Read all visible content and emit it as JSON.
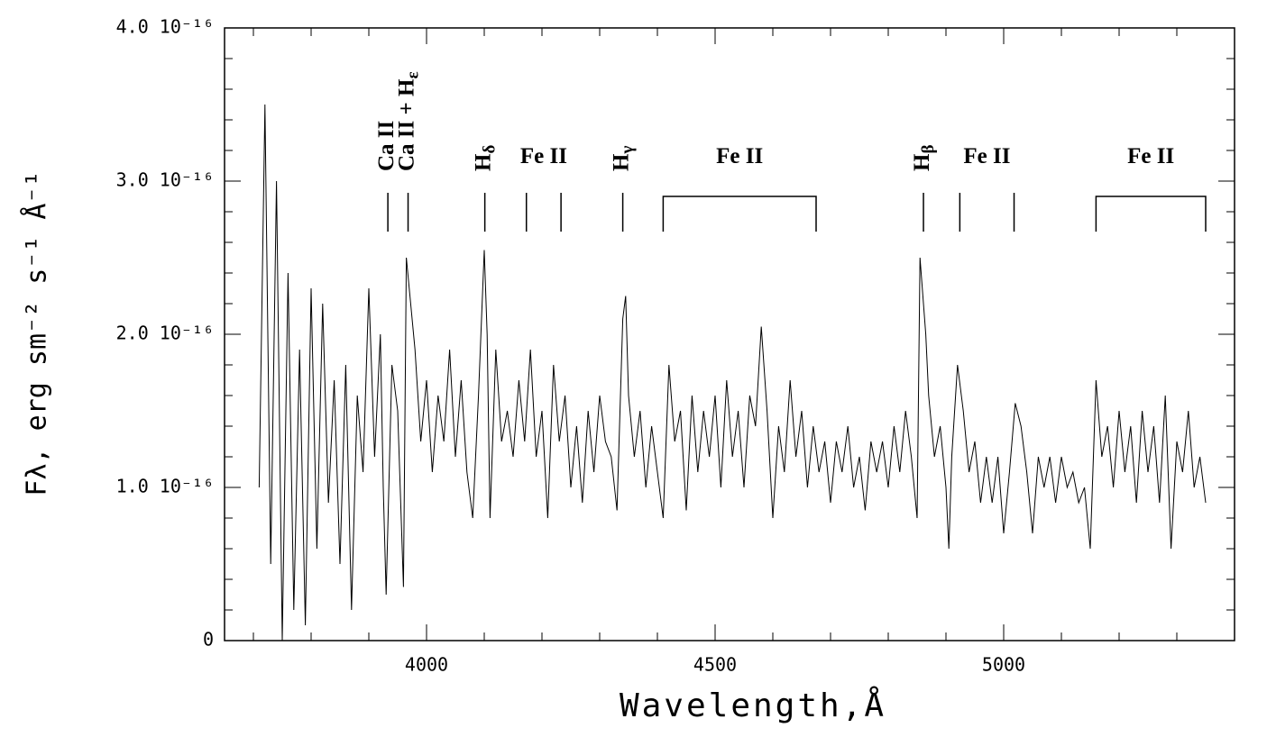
{
  "chart_data": {
    "type": "line",
    "xlabel": "Wavelength,Å",
    "ylabel": "Fλ, erg sm⁻² s⁻¹ Å⁻¹",
    "xlim": [
      3650,
      5400
    ],
    "xticks": [
      4000,
      4500,
      5000
    ],
    "xticks_minor": [
      3700,
      3800,
      3900,
      4100,
      4200,
      4300,
      4400,
      4600,
      4700,
      4800,
      4900,
      5100,
      5200,
      5300
    ],
    "ylim": [
      0,
      4e-16
    ],
    "yticks": [
      0,
      {
        "value": 1e-16,
        "label": "1.0 10⁻¹⁶"
      },
      {
        "value": 2e-16,
        "label": "2.0 10⁻¹⁶"
      },
      {
        "value": 3e-16,
        "label": "3.0 10⁻¹⁶"
      },
      {
        "value": 4e-16,
        "label": "4.0 10⁻¹⁶"
      }
    ],
    "yticks_minor": [
      2e-17,
      4e-17,
      6e-17,
      8e-17,
      1.2e-16,
      1.4e-16,
      1.6e-16,
      1.8e-16,
      2.2e-16,
      2.4e-16,
      2.6e-16,
      2.8e-16,
      3.2e-16,
      3.4e-16,
      3.6e-16,
      3.8e-16
    ],
    "color": "#000000",
    "x": [
      3710,
      3720,
      3730,
      3740,
      3750,
      3760,
      3770,
      3780,
      3790,
      3800,
      3810,
      3820,
      3830,
      3840,
      3850,
      3860,
      3870,
      3880,
      3890,
      3900,
      3910,
      3920,
      3925,
      3930,
      3940,
      3950,
      3960,
      3965,
      3970,
      3980,
      3990,
      4000,
      4010,
      4020,
      4030,
      4040,
      4050,
      4060,
      4070,
      4080,
      4090,
      4100,
      4105,
      4110,
      4120,
      4130,
      4140,
      4150,
      4160,
      4170,
      4180,
      4190,
      4200,
      4210,
      4220,
      4230,
      4240,
      4250,
      4260,
      4270,
      4280,
      4290,
      4300,
      4310,
      4320,
      4330,
      4340,
      4345,
      4350,
      4360,
      4370,
      4380,
      4390,
      4400,
      4410,
      4420,
      4430,
      4440,
      4450,
      4460,
      4470,
      4480,
      4490,
      4500,
      4510,
      4520,
      4530,
      4540,
      4550,
      4560,
      4570,
      4580,
      4590,
      4600,
      4610,
      4620,
      4630,
      4640,
      4650,
      4660,
      4670,
      4680,
      4690,
      4700,
      4710,
      4720,
      4730,
      4740,
      4750,
      4760,
      4770,
      4780,
      4790,
      4800,
      4810,
      4820,
      4830,
      4840,
      4850,
      4855,
      4865,
      4870,
      4880,
      4890,
      4900,
      4905,
      4910,
      4920,
      4930,
      4940,
      4950,
      4960,
      4970,
      4980,
      4990,
      5000,
      5010,
      5020,
      5030,
      5040,
      5050,
      5060,
      5070,
      5080,
      5090,
      5100,
      5110,
      5120,
      5130,
      5140,
      5150,
      5160,
      5170,
      5180,
      5190,
      5200,
      5210,
      5220,
      5230,
      5240,
      5250,
      5260,
      5270,
      5280,
      5290,
      5300,
      5310,
      5320,
      5330,
      5340,
      5350
    ],
    "values": [
      1e-16,
      3.5e-16,
      5e-17,
      3e-16,
      0,
      2.4e-16,
      2e-17,
      1.9e-16,
      1e-17,
      2.3e-16,
      6e-17,
      2.2e-16,
      9e-17,
      1.7e-16,
      5e-17,
      1.8e-16,
      2e-17,
      1.6e-16,
      1.1e-16,
      2.3e-16,
      1.2e-16,
      2e-16,
      1e-16,
      3e-17,
      1.8e-16,
      1.5e-16,
      3.5e-17,
      2.5e-16,
      2.3e-16,
      1.9e-16,
      1.3e-16,
      1.7e-16,
      1.1e-16,
      1.6e-16,
      1.3e-16,
      1.9e-16,
      1.2e-16,
      1.7e-16,
      1.1e-16,
      8e-17,
      1.6e-16,
      2.55e-16,
      2e-16,
      8e-17,
      1.9e-16,
      1.3e-16,
      1.5e-16,
      1.2e-16,
      1.7e-16,
      1.3e-16,
      1.9e-16,
      1.2e-16,
      1.5e-16,
      8e-17,
      1.8e-16,
      1.3e-16,
      1.6e-16,
      1e-16,
      1.4e-16,
      9e-17,
      1.5e-16,
      1.1e-16,
      1.6e-16,
      1.3e-16,
      1.2e-16,
      8.5e-17,
      2.1e-16,
      2.25e-16,
      1.6e-16,
      1.2e-16,
      1.5e-16,
      1e-16,
      1.4e-16,
      1.1e-16,
      8e-17,
      1.8e-16,
      1.3e-16,
      1.5e-16,
      8.5e-17,
      1.6e-16,
      1.1e-16,
      1.5e-16,
      1.2e-16,
      1.6e-16,
      1e-16,
      1.7e-16,
      1.2e-16,
      1.5e-16,
      1e-16,
      1.6e-16,
      1.4e-16,
      2.05e-16,
      1.5e-16,
      8e-17,
      1.4e-16,
      1.1e-16,
      1.7e-16,
      1.2e-16,
      1.5e-16,
      1e-16,
      1.4e-16,
      1.1e-16,
      1.3e-16,
      9e-17,
      1.3e-16,
      1.1e-16,
      1.4e-16,
      1e-16,
      1.2e-16,
      8.5e-17,
      1.3e-16,
      1.1e-16,
      1.3e-16,
      1e-16,
      1.4e-16,
      1.1e-16,
      1.5e-16,
      1.2e-16,
      8e-17,
      2.5e-16,
      2e-16,
      1.6e-16,
      1.2e-16,
      1.4e-16,
      1e-16,
      6e-17,
      1.2e-16,
      1.8e-16,
      1.5e-16,
      1.1e-16,
      1.3e-16,
      9e-17,
      1.2e-16,
      9e-17,
      1.2e-16,
      7e-17,
      1.1e-16,
      1.55e-16,
      1.4e-16,
      1.1e-16,
      7e-17,
      1.2e-16,
      1e-16,
      1.2e-16,
      9e-17,
      1.2e-16,
      1e-16,
      1.1e-16,
      9e-17,
      1e-16,
      6e-17,
      1.7e-16,
      1.2e-16,
      1.4e-16,
      1e-16,
      1.5e-16,
      1.1e-16,
      1.4e-16,
      9e-17,
      1.5e-16,
      1.1e-16,
      1.4e-16,
      9e-17,
      1.6e-16,
      6e-17,
      1.3e-16,
      1.1e-16,
      1.5e-16,
      1e-16,
      1.2e-16,
      9e-17
    ],
    "annotations": [
      {
        "label": "Ca II",
        "x": [
          3933
        ]
      },
      {
        "label": "Ca II + H",
        "sub": "ε",
        "x": [
          3968
        ]
      },
      {
        "label": "H",
        "sub": "δ",
        "x": [
          4101
        ]
      },
      {
        "label": "Fe II",
        "x": [
          4173,
          4233
        ]
      },
      {
        "label": "H",
        "sub": "γ",
        "x": [
          4340
        ]
      },
      {
        "label": "Fe II",
        "bracket": [
          4410,
          4675
        ]
      },
      {
        "label": "H",
        "sub": "β",
        "x": [
          4861
        ]
      },
      {
        "label": "Fe II",
        "x": [
          4924,
          5018
        ]
      },
      {
        "label": "Fe II",
        "bracket": [
          5160,
          5350
        ]
      }
    ]
  }
}
